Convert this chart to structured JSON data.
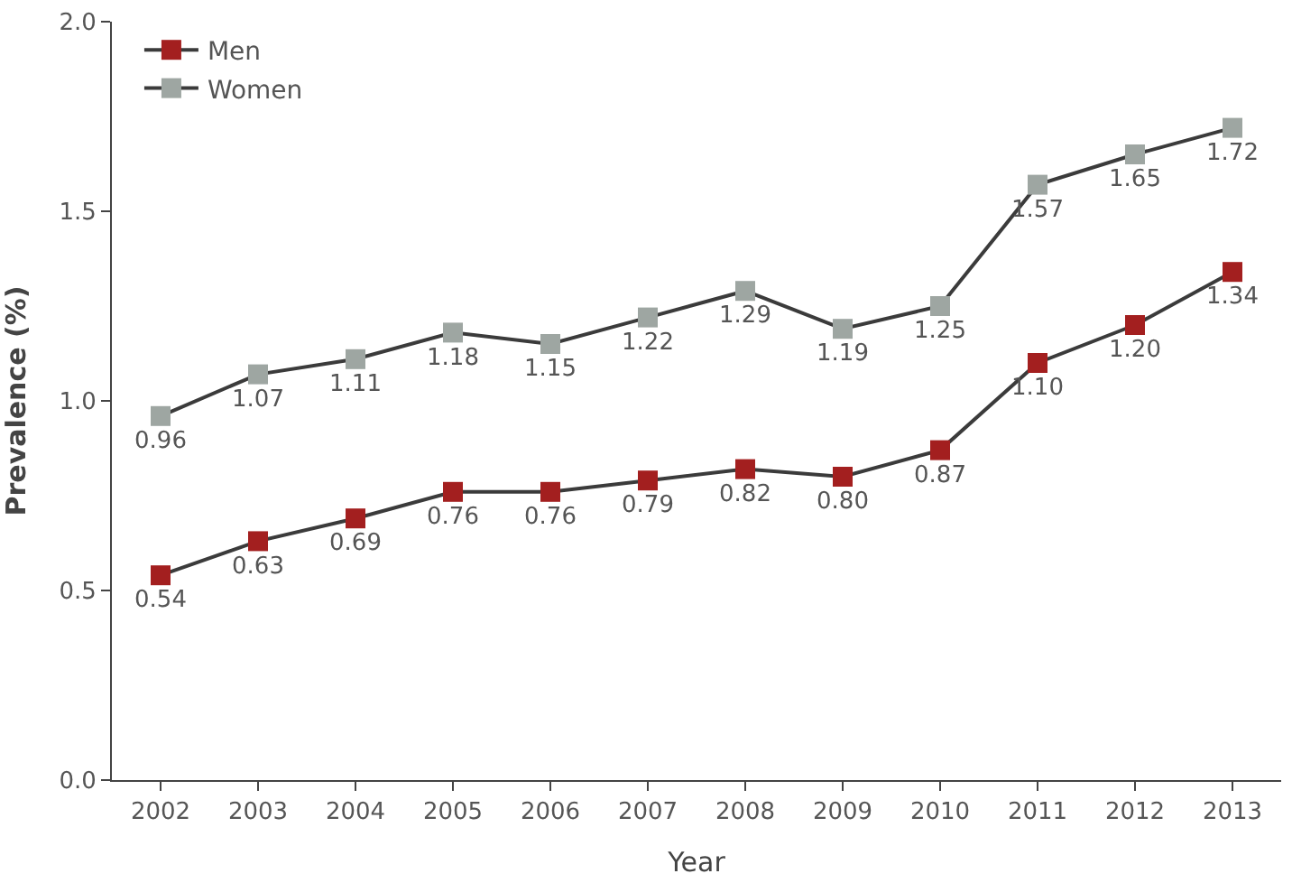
{
  "chart_data": {
    "type": "line",
    "xlabel": "Year",
    "ylabel": "Prevalence (%)",
    "categories": [
      "2002",
      "2003",
      "2004",
      "2005",
      "2006",
      "2007",
      "2008",
      "2009",
      "2010",
      "2011",
      "2012",
      "2013"
    ],
    "series": [
      {
        "name": "Men",
        "color": "#a31f1f",
        "values": [
          0.54,
          0.63,
          0.69,
          0.76,
          0.76,
          0.79,
          0.82,
          0.8,
          0.87,
          1.1,
          1.2,
          1.34
        ],
        "value_labels": [
          "0.54",
          "0.63",
          "0.69",
          "0.76",
          "0.76",
          "0.79",
          "0.82",
          "0.80",
          "0.87",
          "1.10",
          "1.20",
          "1.34"
        ]
      },
      {
        "name": "Women",
        "color": "#9ea6a2",
        "values": [
          0.96,
          1.07,
          1.11,
          1.18,
          1.15,
          1.22,
          1.29,
          1.19,
          1.25,
          1.57,
          1.65,
          1.72
        ],
        "value_labels": [
          "0.96",
          "1.07",
          "1.11",
          "1.18",
          "1.15",
          "1.22",
          "1.29",
          "1.19",
          "1.25",
          "1.57",
          "1.65",
          "1.72"
        ]
      }
    ],
    "ylim": [
      0,
      2
    ],
    "yticks": [
      {
        "value": 0,
        "label": "0.0"
      },
      {
        "value": 0.5,
        "label": "0.5"
      },
      {
        "value": 1,
        "label": "1.0"
      },
      {
        "value": 1.5,
        "label": "1.5"
      },
      {
        "value": 2,
        "label": "2.0"
      }
    ],
    "marker": "square",
    "line_style": "solid",
    "legend": "top left"
  }
}
